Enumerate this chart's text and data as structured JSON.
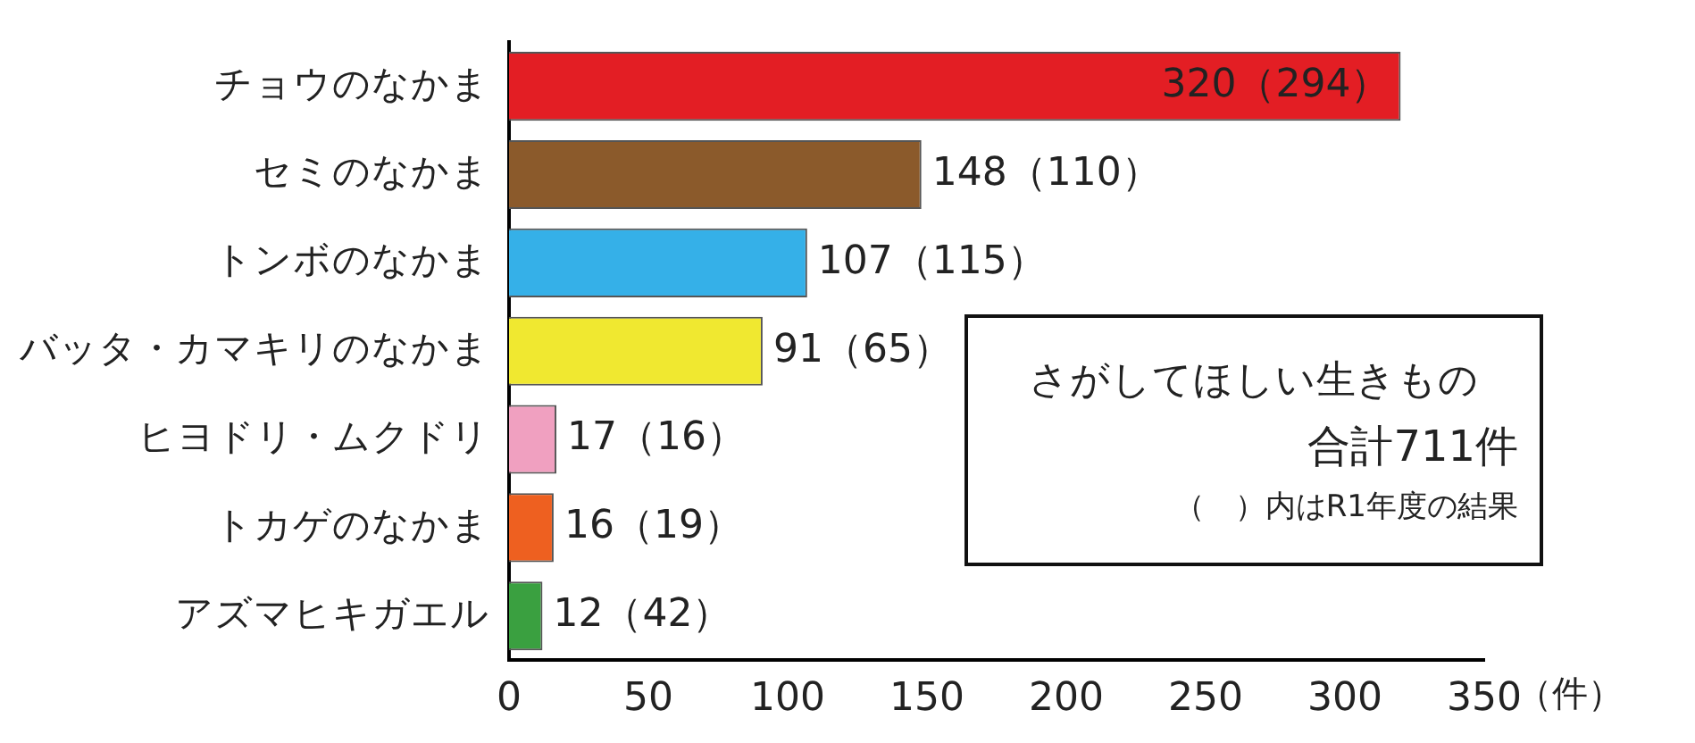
{
  "chart_data": {
    "type": "bar",
    "orientation": "horizontal",
    "categories": [
      "チョウのなかま",
      "セミのなかま",
      "トンボのなかま",
      "バッタ・カマキリのなかま",
      "ヒヨドリ・ムクドリ",
      "トカゲのなかま",
      "アズマヒキガエル"
    ],
    "values": [
      320,
      148,
      107,
      91,
      17,
      16,
      12
    ],
    "colors": [
      "#e31e24",
      "#8b5a2b",
      "#35b0e8",
      "#f0e830",
      "#f0a0c0",
      "#ee6020",
      "#3aa040"
    ],
    "value_labels": [
      "320（294）",
      "148（110）",
      "107（115）",
      "91（65）",
      "17（16）",
      "16（19）",
      "12（42）"
    ],
    "xlim": [
      0,
      350
    ],
    "xticks": [
      0,
      50,
      100,
      150,
      200,
      250,
      300,
      350
    ],
    "xlabel": "（件）",
    "annotations": [
      "さがしてほしい生きもの",
      "合計711件",
      "（　）内はR1年度の結果"
    ],
    "grid": false,
    "legend": false
  }
}
